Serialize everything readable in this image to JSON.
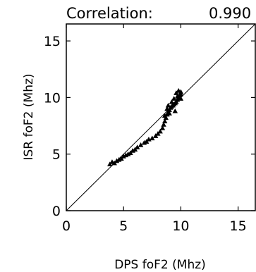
{
  "chart_data": {
    "type": "scatter",
    "title": "Correlation:",
    "correlation": "0.990",
    "xlabel": "DPS foF2 (Mhz)",
    "ylabel": "ISR foF2 (Mhz)",
    "xlim": [
      0,
      16.5
    ],
    "ylim": [
      0,
      16.5
    ],
    "xticks": [
      "0",
      "5",
      "10",
      "15"
    ],
    "yticks": [
      "0",
      "5",
      "10",
      "15"
    ],
    "reference_line": "y = x",
    "marker": "triangle",
    "grid": false,
    "series": [
      {
        "points": [
          [
            3.8,
            4.1
          ],
          [
            4.0,
            4.3
          ],
          [
            4.2,
            4.2
          ],
          [
            4.4,
            4.4
          ],
          [
            4.6,
            4.5
          ],
          [
            4.8,
            4.6
          ],
          [
            5.0,
            4.8
          ],
          [
            5.2,
            4.9
          ],
          [
            5.4,
            5.0
          ],
          [
            5.6,
            5.1
          ],
          [
            5.8,
            5.3
          ],
          [
            6.0,
            5.4
          ],
          [
            6.2,
            5.6
          ],
          [
            6.5,
            5.8
          ],
          [
            6.8,
            6.0
          ],
          [
            7.0,
            6.1
          ],
          [
            7.2,
            6.3
          ],
          [
            7.5,
            6.4
          ],
          [
            7.8,
            6.6
          ],
          [
            8.0,
            6.8
          ],
          [
            8.2,
            7.0
          ],
          [
            8.4,
            7.3
          ],
          [
            8.5,
            7.6
          ],
          [
            8.6,
            7.9
          ],
          [
            8.7,
            8.2
          ],
          [
            8.8,
            8.5
          ],
          [
            8.9,
            8.7
          ],
          [
            9.0,
            8.9
          ],
          [
            9.1,
            9.1
          ],
          [
            9.2,
            9.2
          ],
          [
            9.3,
            9.3
          ],
          [
            9.4,
            9.4
          ],
          [
            9.5,
            9.5
          ],
          [
            9.6,
            9.6
          ],
          [
            9.7,
            9.8
          ],
          [
            9.8,
            10.0
          ],
          [
            9.9,
            10.2
          ],
          [
            10.0,
            10.3
          ],
          [
            10.0,
            10.5
          ],
          [
            9.6,
            10.4
          ],
          [
            9.4,
            9.9
          ],
          [
            9.0,
            8.6
          ],
          [
            8.8,
            9.0
          ],
          [
            9.2,
            9.6
          ],
          [
            9.8,
            10.6
          ],
          [
            9.5,
            8.8
          ],
          [
            8.6,
            8.4
          ],
          [
            8.9,
            9.3
          ],
          [
            9.7,
            10.1
          ],
          [
            10.0,
            9.9
          ]
        ]
      }
    ]
  }
}
